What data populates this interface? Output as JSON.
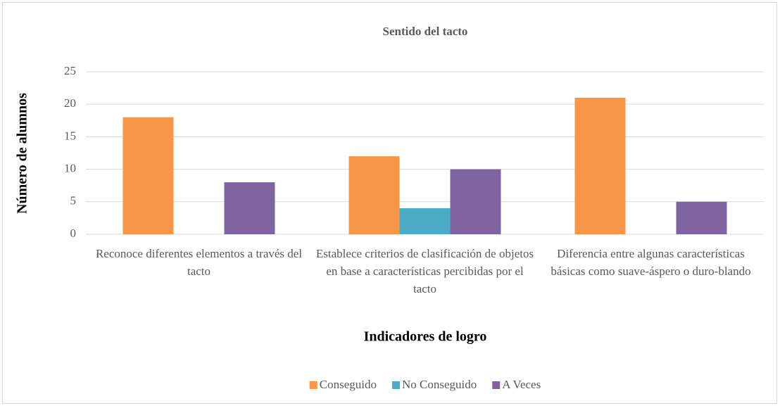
{
  "chart_data": {
    "type": "bar",
    "title": "Sentido del tacto",
    "x_label": "Indicadores de logro",
    "y_label": "Número de alumnos",
    "categories": [
      "Reconoce diferentes elementos a través del tacto",
      "Establece criterios de clasificación de objetos en base a características percibidas por el tacto",
      "Diferencia entre algunas características básicas como suave-áspero o duro-blando"
    ],
    "series": [
      {
        "name": "Conseguido",
        "color": "#f79646",
        "values": [
          18,
          12,
          21
        ]
      },
      {
        "name": "No Conseguido",
        "color": "#4bacc6",
        "values": [
          0,
          4,
          0
        ]
      },
      {
        "name": "A Veces",
        "color": "#8064a2",
        "values": [
          8,
          10,
          5
        ]
      }
    ],
    "ylim": [
      0,
      25
    ],
    "yticks": [
      0,
      5,
      10,
      15,
      20,
      25
    ],
    "grid": true,
    "legend": "bottom"
  }
}
